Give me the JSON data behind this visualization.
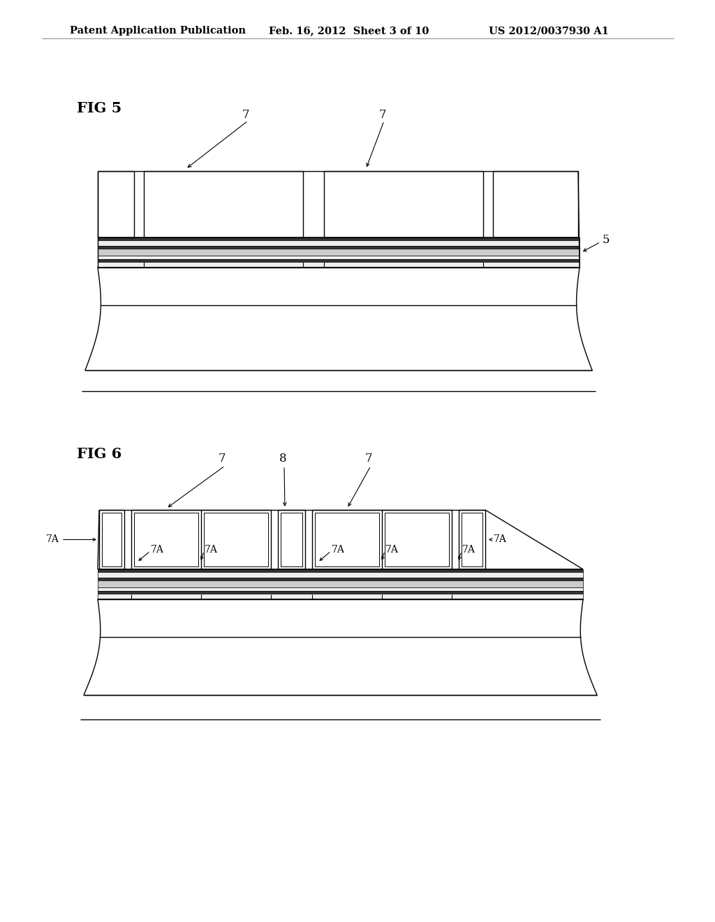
{
  "bg_color": "#ffffff",
  "line_color": "#000000",
  "header_left": "Patent Application Publication",
  "header_mid": "Feb. 16, 2012  Sheet 3 of 10",
  "header_right": "US 2012/0037930 A1",
  "fig5_label": "FIG 5",
  "fig6_label": "FIG 6"
}
